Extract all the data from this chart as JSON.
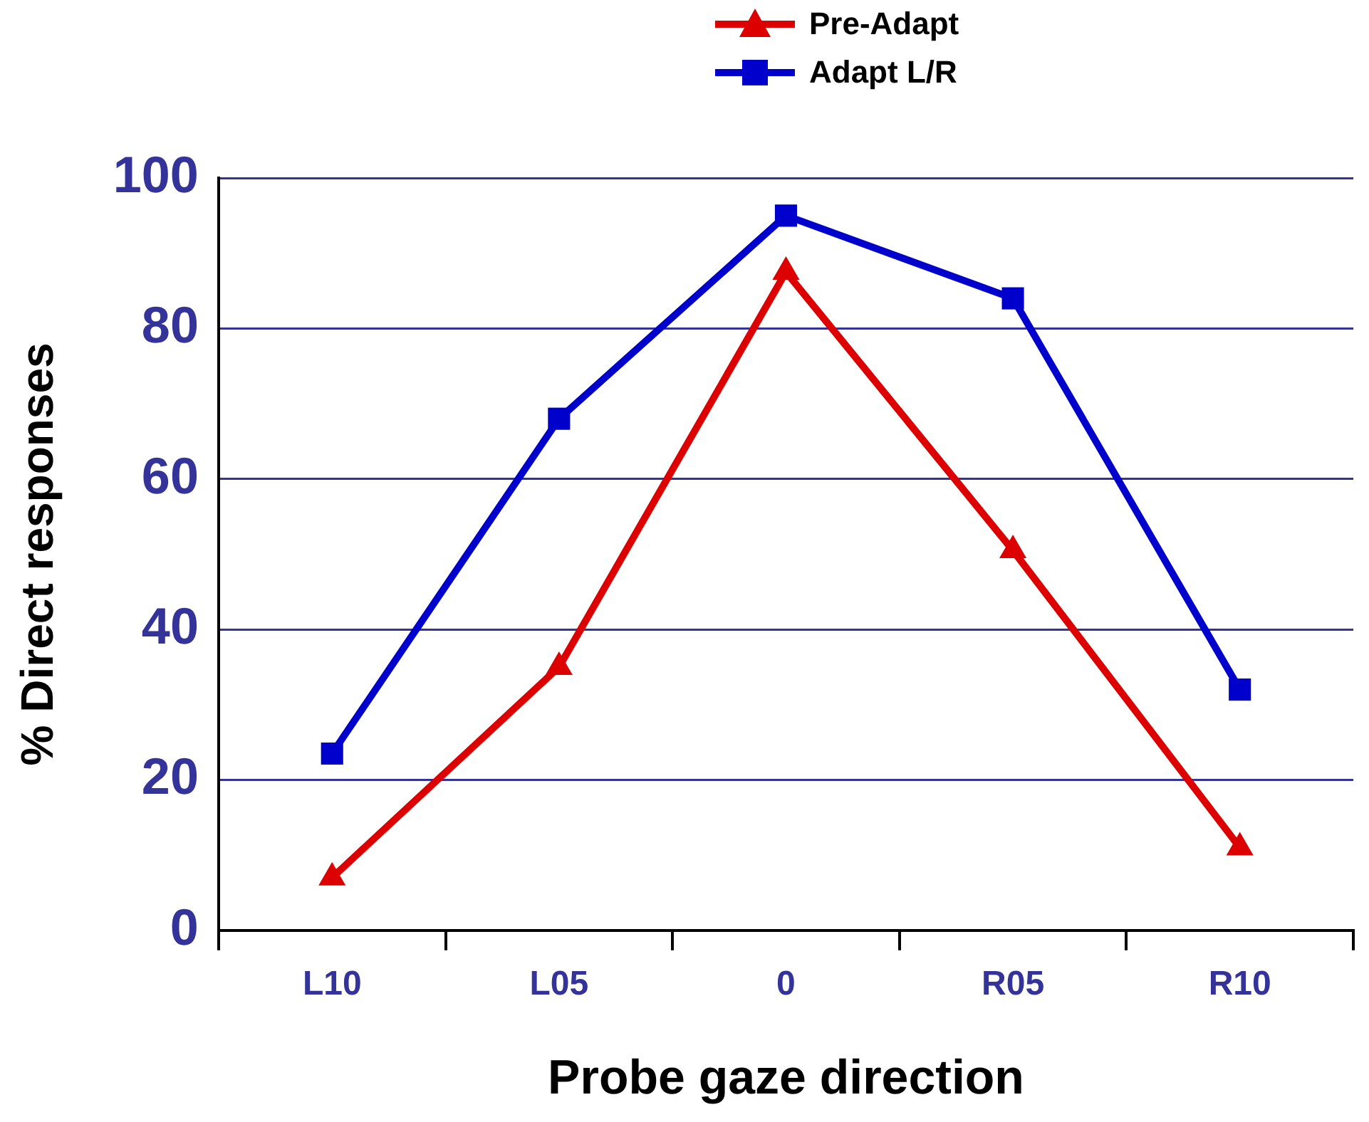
{
  "chart_data": {
    "type": "line",
    "xlabel": "Probe gaze direction",
    "ylabel": "% Direct responses",
    "categories": [
      "L10",
      "L05",
      "0",
      "R05",
      "R10"
    ],
    "series": [
      {
        "name": "Pre-Adapt",
        "color": "#dd0000",
        "marker": "triangle",
        "values": [
          7,
          35,
          87.5,
          50.5,
          11
        ]
      },
      {
        "name": "Adapt L/R",
        "color": "#0000cc",
        "marker": "square",
        "values": [
          23.5,
          68,
          95,
          84,
          32
        ]
      }
    ],
    "ylim": [
      0,
      100
    ],
    "yticks": [
      0,
      20,
      40,
      60,
      80,
      100
    ],
    "grid": "y",
    "legend": "top",
    "line_style": "solid"
  }
}
